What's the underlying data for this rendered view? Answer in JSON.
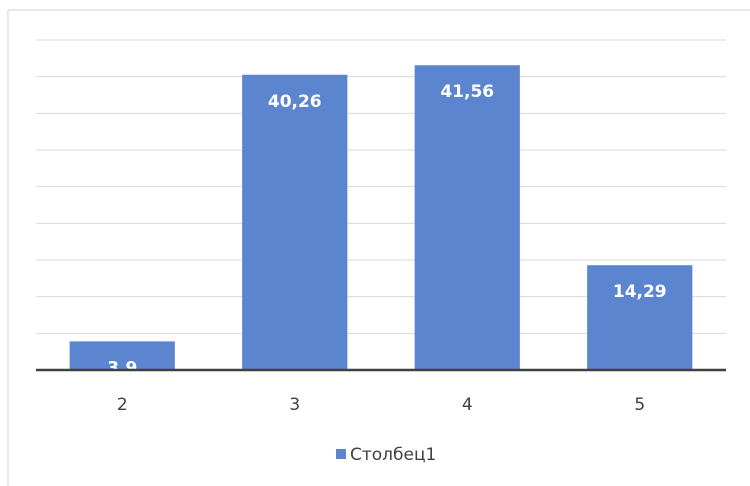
{
  "chart_data": {
    "type": "bar",
    "categories": [
      "2",
      "3",
      "4",
      "5"
    ],
    "series": [
      {
        "name": "Столбец1",
        "color": "#5b86cf",
        "values": [
          3.9,
          40.26,
          41.56,
          14.29
        ],
        "value_labels": [
          "3,9",
          "40,26",
          "41,56",
          "14,29"
        ]
      }
    ],
    "ylim": [
      0,
      45
    ],
    "yticks": [
      0,
      5,
      10,
      15,
      20,
      25,
      30,
      35,
      40,
      45
    ],
    "grid": true,
    "legend": "bottom"
  }
}
